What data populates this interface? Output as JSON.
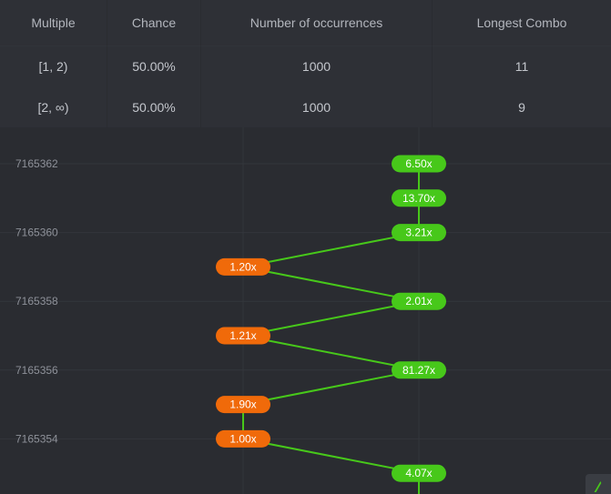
{
  "stats_table": {
    "headers": [
      "Multiple",
      "Chance",
      "Number of occurrences",
      "Longest Combo"
    ],
    "rows": [
      [
        "[1, 2)",
        "50.00%",
        "1000",
        "11"
      ],
      [
        "[2, ∞)",
        "50.00%",
        "1000",
        "9"
      ]
    ]
  },
  "chart_data": {
    "type": "line",
    "xlabel": "",
    "ylabel": "",
    "y_ticks": [
      "7165362",
      "7165360",
      "7165358",
      "7165356",
      "7165354"
    ],
    "ylim": [
      7165353,
      7165362
    ],
    "grid": true,
    "series": [
      {
        "points": [
          {
            "game": 7165362,
            "multiplier": "6.50x",
            "value": 6.5,
            "class": "high"
          },
          {
            "game": 7165361,
            "multiplier": "13.70x",
            "value": 13.7,
            "class": "high"
          },
          {
            "game": 7165360,
            "multiplier": "3.21x",
            "value": 3.21,
            "class": "high"
          },
          {
            "game": 7165359,
            "multiplier": "1.20x",
            "value": 1.2,
            "class": "low"
          },
          {
            "game": 7165358,
            "multiplier": "2.01x",
            "value": 2.01,
            "class": "high"
          },
          {
            "game": 7165357,
            "multiplier": "1.21x",
            "value": 1.21,
            "class": "low"
          },
          {
            "game": 7165356,
            "multiplier": "81.27x",
            "value": 81.27,
            "class": "high"
          },
          {
            "game": 7165355,
            "multiplier": "1.90x",
            "value": 1.9,
            "class": "low"
          },
          {
            "game": 7165354,
            "multiplier": "1.00x",
            "value": 1.0,
            "class": "low"
          },
          {
            "game": 7165353,
            "multiplier": "4.07x",
            "value": 4.07,
            "class": "high"
          }
        ]
      }
    ]
  },
  "colors": {
    "background": "#2a2c31",
    "table_bg": "#2e3036",
    "high": "#47c81a",
    "low": "#f06a0a",
    "line": "#47c81a",
    "grid": "#33363c",
    "tick_text": "#8e9199"
  }
}
